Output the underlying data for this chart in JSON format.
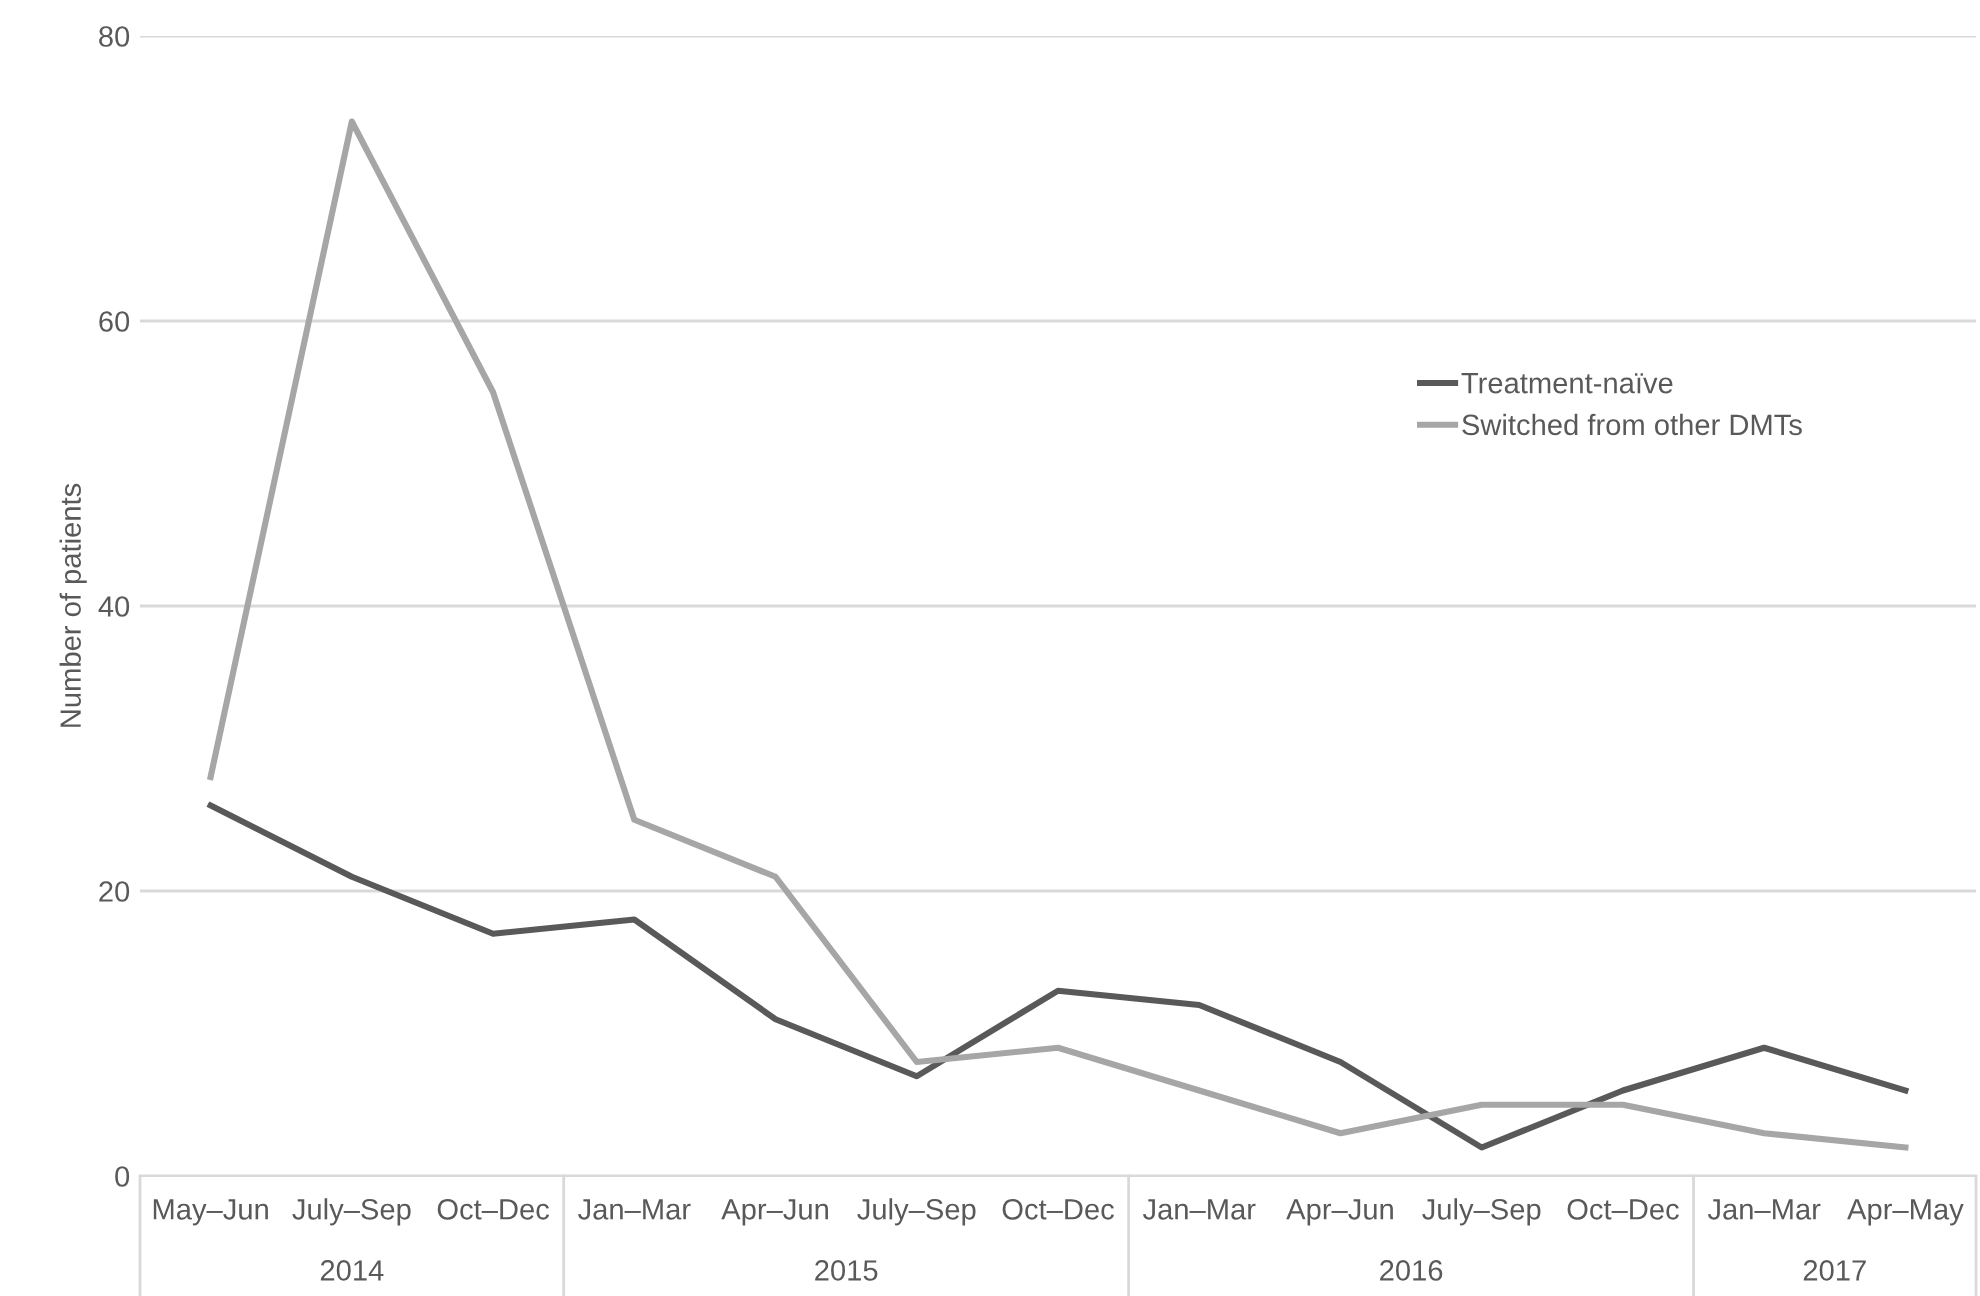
{
  "chart_data": {
    "type": "line",
    "ylabel": "Number of patients",
    "categories": [
      "May–Jun",
      "July–Sep",
      "Oct–Dec",
      "Jan–Mar",
      "Apr–Jun",
      "July–Sep",
      "Oct–Dec",
      "Jan–Mar",
      "Apr–Jun",
      "July–Sep",
      "Oct–Dec",
      "Jan–Mar",
      "Apr–May"
    ],
    "series": [
      {
        "name": "Treatment-naïve",
        "color": "#595959",
        "values": [
          26,
          21,
          17,
          18,
          11,
          7,
          13,
          12,
          8,
          2,
          6,
          9,
          6
        ]
      },
      {
        "name": "Switched from other DMTs",
        "color": "#a6a6a6",
        "values": [
          28,
          74,
          55,
          25,
          21,
          8,
          9,
          6,
          3,
          5,
          5,
          3,
          2
        ]
      }
    ],
    "annotations": [
      "2014",
      "2015",
      "2016",
      "2017"
    ],
    "ylim": [
      0,
      80
    ],
    "yticks": [
      0,
      20,
      40,
      60,
      80
    ],
    "grid": "y",
    "legend": "right",
    "marker": "none",
    "line_style": "solid"
  }
}
